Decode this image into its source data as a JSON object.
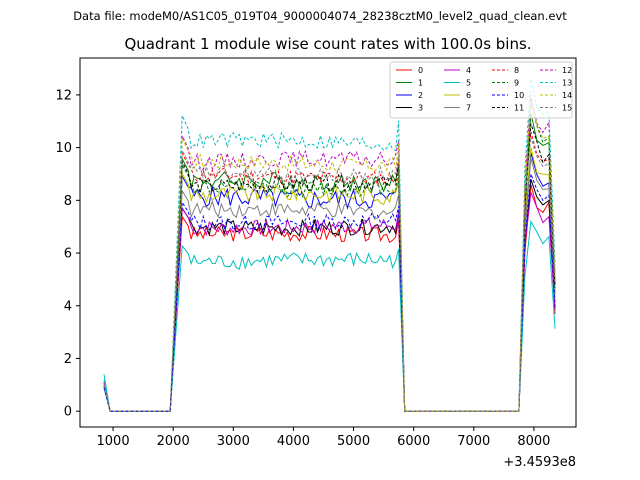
{
  "figure": {
    "suptitle": "Data file: modeM0/AS1C05_019T04_9000004074_28238cztM0_level2_quad_clean.evt",
    "title": "Quadrant 1 module wise count rates with 100.0s bins.",
    "x_offset_label": "+3.4593e8"
  },
  "chart_data": {
    "type": "line",
    "title": "Quadrant 1 module wise count rates with 100.0s bins.",
    "xlabel": "",
    "ylabel": "",
    "x_offset": 345930000,
    "xlim": [
      450,
      8700
    ],
    "ylim": [
      -0.6,
      13.4
    ],
    "xticks": [
      1000,
      2000,
      3000,
      4000,
      5000,
      6000,
      7000,
      8000
    ],
    "yticks": [
      0,
      2,
      4,
      6,
      8,
      10,
      12
    ],
    "xtick_labels": [
      "1000",
      "2000",
      "3000",
      "4000",
      "5000",
      "6000",
      "7000",
      "8000"
    ],
    "ytick_labels": [
      "0",
      "2",
      "4",
      "6",
      "8",
      "10",
      "12"
    ],
    "legend_position": "upper right",
    "legend_columns": 4,
    "grid": false,
    "time_bins_s": 100.0,
    "segments": [
      {
        "start": 850,
        "end": 950,
        "shape": "decay"
      },
      {
        "start": 950,
        "end": 1950,
        "shape": "zero"
      },
      {
        "start": 2050,
        "end": 5750,
        "shape": "plateau"
      },
      {
        "start": 5850,
        "end": 7750,
        "shape": "zero"
      },
      {
        "start": 7850,
        "end": 8350,
        "shape": "plateau"
      }
    ],
    "series": [
      {
        "name": "0",
        "color": "#ff0000",
        "dashed": false,
        "start": 1.1,
        "level": 6.7,
        "jitter": 0.3,
        "second_peak": 8.6
      },
      {
        "name": "1",
        "color": "#008000",
        "dashed": false,
        "start": 1.0,
        "level": 8.7,
        "jitter": 0.35,
        "second_peak": 11.3
      },
      {
        "name": "2",
        "color": "#0000ff",
        "dashed": false,
        "start": 0.9,
        "level": 8.1,
        "jitter": 0.4,
        "second_peak": 9.8
      },
      {
        "name": "3",
        "color": "#000000",
        "dashed": false,
        "start": 1.0,
        "level": 7.0,
        "jitter": 0.3,
        "second_peak": 8.8
      },
      {
        "name": "4",
        "color": "#bf00bf",
        "dashed": false,
        "start": 1.1,
        "level": 7.0,
        "jitter": 0.3,
        "second_peak": 8.3
      },
      {
        "name": "5",
        "color": "#00bfbf",
        "dashed": false,
        "start": 1.4,
        "level": 5.7,
        "jitter": 0.3,
        "second_peak": 7.2
      },
      {
        "name": "6",
        "color": "#bfbf00",
        "dashed": false,
        "start": 1.0,
        "level": 8.2,
        "jitter": 0.35,
        "second_peak": 10.0
      },
      {
        "name": "7",
        "color": "#808080",
        "dashed": false,
        "start": 1.0,
        "level": 7.6,
        "jitter": 0.3,
        "second_peak": 9.6
      },
      {
        "name": "8",
        "color": "#ff0000",
        "dashed": true,
        "start": 1.0,
        "level": 8.9,
        "jitter": 0.3,
        "second_peak": 10.6
      },
      {
        "name": "9",
        "color": "#008000",
        "dashed": true,
        "start": 1.0,
        "level": 8.5,
        "jitter": 0.3,
        "second_peak": 11.7
      },
      {
        "name": "10",
        "color": "#0000ff",
        "dashed": true,
        "start": 0.9,
        "level": 7.2,
        "jitter": 0.3,
        "second_peak": 9.0
      },
      {
        "name": "11",
        "color": "#000000",
        "dashed": true,
        "start": 1.0,
        "level": 8.6,
        "jitter": 0.3,
        "second_peak": 10.9
      },
      {
        "name": "12",
        "color": "#bf00bf",
        "dashed": true,
        "start": 1.0,
        "level": 9.5,
        "jitter": 0.3,
        "second_peak": 12.0
      },
      {
        "name": "13",
        "color": "#00bfbf",
        "dashed": true,
        "start": 1.2,
        "level": 10.2,
        "jitter": 0.3,
        "second_peak": 12.6
      },
      {
        "name": "14",
        "color": "#bfbf00",
        "dashed": true,
        "start": 1.0,
        "level": 9.4,
        "jitter": 0.3,
        "second_peak": 11.8
      },
      {
        "name": "15",
        "color": "#808080",
        "dashed": true,
        "start": 1.0,
        "level": 9.0,
        "jitter": 0.3,
        "second_peak": 10.4
      }
    ]
  }
}
